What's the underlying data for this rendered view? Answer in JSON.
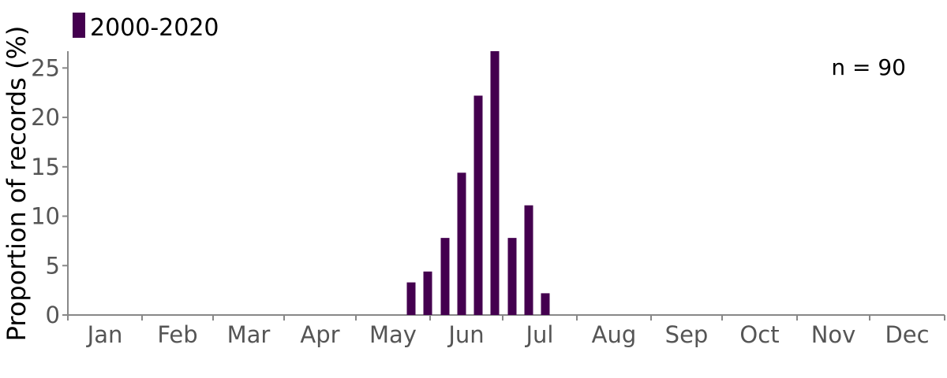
{
  "chart_data": {
    "type": "bar",
    "ylabel": "Proportion of records (%)",
    "xlabel": "",
    "ylim": [
      0,
      26.7
    ],
    "yticks": [
      0,
      5,
      10,
      15,
      20,
      25
    ],
    "months": [
      "Jan",
      "Feb",
      "Mar",
      "Apr",
      "May",
      "Jun",
      "Jul",
      "Aug",
      "Sep",
      "Oct",
      "Nov",
      "Dec"
    ],
    "series": [
      {
        "name": "2000-2020",
        "color": "#44004f",
        "bars": [
          {
            "x": "Late May",
            "value": 3.3
          },
          {
            "x": "Late May",
            "value": 4.4
          },
          {
            "x": "Early Jun",
            "value": 7.8
          },
          {
            "x": "Early Jun",
            "value": 14.4
          },
          {
            "x": "Mid Jun",
            "value": 22.2
          },
          {
            "x": "Mid Jun",
            "value": 26.7
          },
          {
            "x": "Late Jun",
            "value": 7.8
          },
          {
            "x": "Late Jun",
            "value": 11.1
          },
          {
            "x": "Early Jul",
            "value": 2.2
          }
        ]
      }
    ],
    "legend_position": "top-left",
    "annotation": "n = 90",
    "grid": false
  }
}
